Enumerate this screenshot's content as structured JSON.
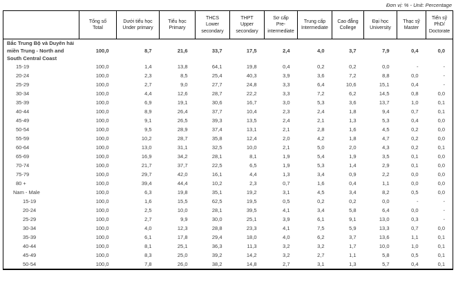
{
  "unit_note": "Đơn vị: % - Unit: Percentage",
  "table": {
    "columns": [
      {
        "vi": "Tổng số",
        "en": "Total"
      },
      {
        "vi": "Dưới tiểu học",
        "en": "Under primary"
      },
      {
        "vi": "Tiểu học",
        "en": "Primary"
      },
      {
        "vi": "THCS",
        "en": "Lower secondary"
      },
      {
        "vi": "THPT",
        "en": "Upper secondary"
      },
      {
        "vi": "Sơ cấp",
        "en": "Pre-intermediate"
      },
      {
        "vi": "Trung cấp",
        "en": "Intermediate"
      },
      {
        "vi": "Cao đẳng",
        "en": "College"
      },
      {
        "vi": "Đại học",
        "en": "University"
      },
      {
        "vi": "Thạc sỹ",
        "en": "Master"
      },
      {
        "vi": "Tiến sỹ",
        "en": "PhD/ Doctorate"
      }
    ],
    "rows": [
      {
        "label": "Bắc Trung Bộ và Duyên hải miền Trung - North and South Central Coast",
        "level": "region",
        "values": [
          "100,0",
          "8,7",
          "21,6",
          "33,7",
          "17,5",
          "2,4",
          "4,0",
          "3,7",
          "7,9",
          "0,4",
          "0,0"
        ]
      },
      {
        "label": "15-19",
        "level": "age1",
        "values": [
          "100,0",
          "1,4",
          "13,8",
          "64,1",
          "19,8",
          "0,4",
          "0,2",
          "0,2",
          "0,0",
          "-",
          "-"
        ]
      },
      {
        "label": "20-24",
        "level": "age1",
        "values": [
          "100,0",
          "2,3",
          "8,5",
          "25,4",
          "40,3",
          "3,9",
          "3,6",
          "7,2",
          "8,8",
          "0,0",
          "-"
        ]
      },
      {
        "label": "25-29",
        "level": "age1",
        "values": [
          "100,0",
          "2,7",
          "9,0",
          "27,7",
          "24,8",
          "3,3",
          "6,4",
          "10,6",
          "15,1",
          "0,4",
          "-"
        ]
      },
      {
        "label": "30-34",
        "level": "age1",
        "values": [
          "100,0",
          "4,4",
          "12,6",
          "28,7",
          "22,2",
          "3,3",
          "7,2",
          "6,2",
          "14,5",
          "0,8",
          "0,0"
        ]
      },
      {
        "label": "35-39",
        "level": "age1",
        "values": [
          "100,0",
          "6,9",
          "19,1",
          "30,6",
          "16,7",
          "3,0",
          "5,3",
          "3,6",
          "13,7",
          "1,0",
          "0,1"
        ]
      },
      {
        "label": "40-44",
        "level": "age1",
        "values": [
          "100,0",
          "8,9",
          "26,4",
          "37,7",
          "10,4",
          "2,3",
          "2,4",
          "1,8",
          "9,4",
          "0,7",
          "0,1"
        ]
      },
      {
        "label": "45-49",
        "level": "age1",
        "values": [
          "100,0",
          "9,1",
          "26,5",
          "39,3",
          "13,5",
          "2,4",
          "2,1",
          "1,3",
          "5,3",
          "0,4",
          "0,0"
        ]
      },
      {
        "label": "50-54",
        "level": "age1",
        "values": [
          "100,0",
          "9,5",
          "28,9",
          "37,4",
          "13,1",
          "2,1",
          "2,8",
          "1,6",
          "4,5",
          "0,2",
          "0,0"
        ]
      },
      {
        "label": "55-59",
        "level": "age1",
        "values": [
          "100,0",
          "10,2",
          "28,7",
          "35,8",
          "12,4",
          "2,0",
          "4,2",
          "1,8",
          "4,7",
          "0,2",
          "0,0"
        ]
      },
      {
        "label": "60-64",
        "level": "age1",
        "values": [
          "100,0",
          "13,0",
          "31,1",
          "32,5",
          "10,0",
          "2,1",
          "5,0",
          "2,0",
          "4,3",
          "0,2",
          "0,1"
        ]
      },
      {
        "label": "65-69",
        "level": "age1",
        "values": [
          "100,0",
          "16,9",
          "34,2",
          "28,1",
          "8,1",
          "1,9",
          "5,4",
          "1,9",
          "3,5",
          "0,1",
          "0,0"
        ]
      },
      {
        "label": "70-74",
        "level": "age1",
        "values": [
          "100,0",
          "21,7",
          "37,7",
          "22,5",
          "6,5",
          "1,9",
          "5,3",
          "1,4",
          "2,9",
          "0,1",
          "0,0"
        ]
      },
      {
        "label": "75-79",
        "level": "age1",
        "values": [
          "100,0",
          "29,7",
          "42,0",
          "16,1",
          "4,4",
          "1,3",
          "3,4",
          "0,9",
          "2,2",
          "0,0",
          "0,0"
        ]
      },
      {
        "label": "80 +",
        "level": "age1",
        "values": [
          "100,0",
          "39,4",
          "44,4",
          "10,2",
          "2,3",
          "0,7",
          "1,6",
          "0,4",
          "1,1",
          "0,0",
          "0,0"
        ]
      },
      {
        "label": "Nam - Male",
        "level": "group",
        "values": [
          "100,0",
          "6,3",
          "19,8",
          "35,1",
          "19,2",
          "3,1",
          "4,5",
          "3,4",
          "8,2",
          "0,5",
          "0,0"
        ]
      },
      {
        "label": "15-19",
        "level": "age2",
        "values": [
          "100,0",
          "1,6",
          "15,5",
          "62,5",
          "19,5",
          "0,5",
          "0,2",
          "0,2",
          "0,0",
          "-",
          "-"
        ]
      },
      {
        "label": "20-24",
        "level": "age2",
        "values": [
          "100,0",
          "2,5",
          "10,0",
          "28,1",
          "39,5",
          "4,1",
          "3,4",
          "5,8",
          "6,4",
          "0,0",
          "-"
        ]
      },
      {
        "label": "25-29",
        "level": "age2",
        "values": [
          "100,0",
          "2,7",
          "9,9",
          "30,0",
          "25,1",
          "3,9",
          "6,1",
          "9,1",
          "13,0",
          "0,3",
          "-"
        ]
      },
      {
        "label": "30-34",
        "level": "age2",
        "values": [
          "100,0",
          "4,0",
          "12,3",
          "28,8",
          "23,3",
          "4,1",
          "7,5",
          "5,9",
          "13,3",
          "0,7",
          "0,0"
        ]
      },
      {
        "label": "35-39",
        "level": "age2",
        "values": [
          "100,0",
          "6,1",
          "17,8",
          "29,4",
          "18,0",
          "4,0",
          "6,2",
          "3,7",
          "13,6",
          "1,1",
          "0,1"
        ]
      },
      {
        "label": "40-44",
        "level": "age2",
        "values": [
          "100,0",
          "8,1",
          "25,1",
          "36,3",
          "11,3",
          "3,2",
          "3,2",
          "1,7",
          "10,0",
          "1,0",
          "0,1"
        ]
      },
      {
        "label": "45-49",
        "level": "age2",
        "values": [
          "100,0",
          "8,3",
          "25,0",
          "39,2",
          "14,2",
          "3,2",
          "2,7",
          "1,1",
          "5,8",
          "0,5",
          "0,1"
        ]
      },
      {
        "label": "50-54",
        "level": "age2",
        "values": [
          "100,0",
          "7,8",
          "26,0",
          "38,2",
          "14,8",
          "2,7",
          "3,1",
          "1,3",
          "5,7",
          "0,4",
          "0,1"
        ]
      }
    ]
  }
}
